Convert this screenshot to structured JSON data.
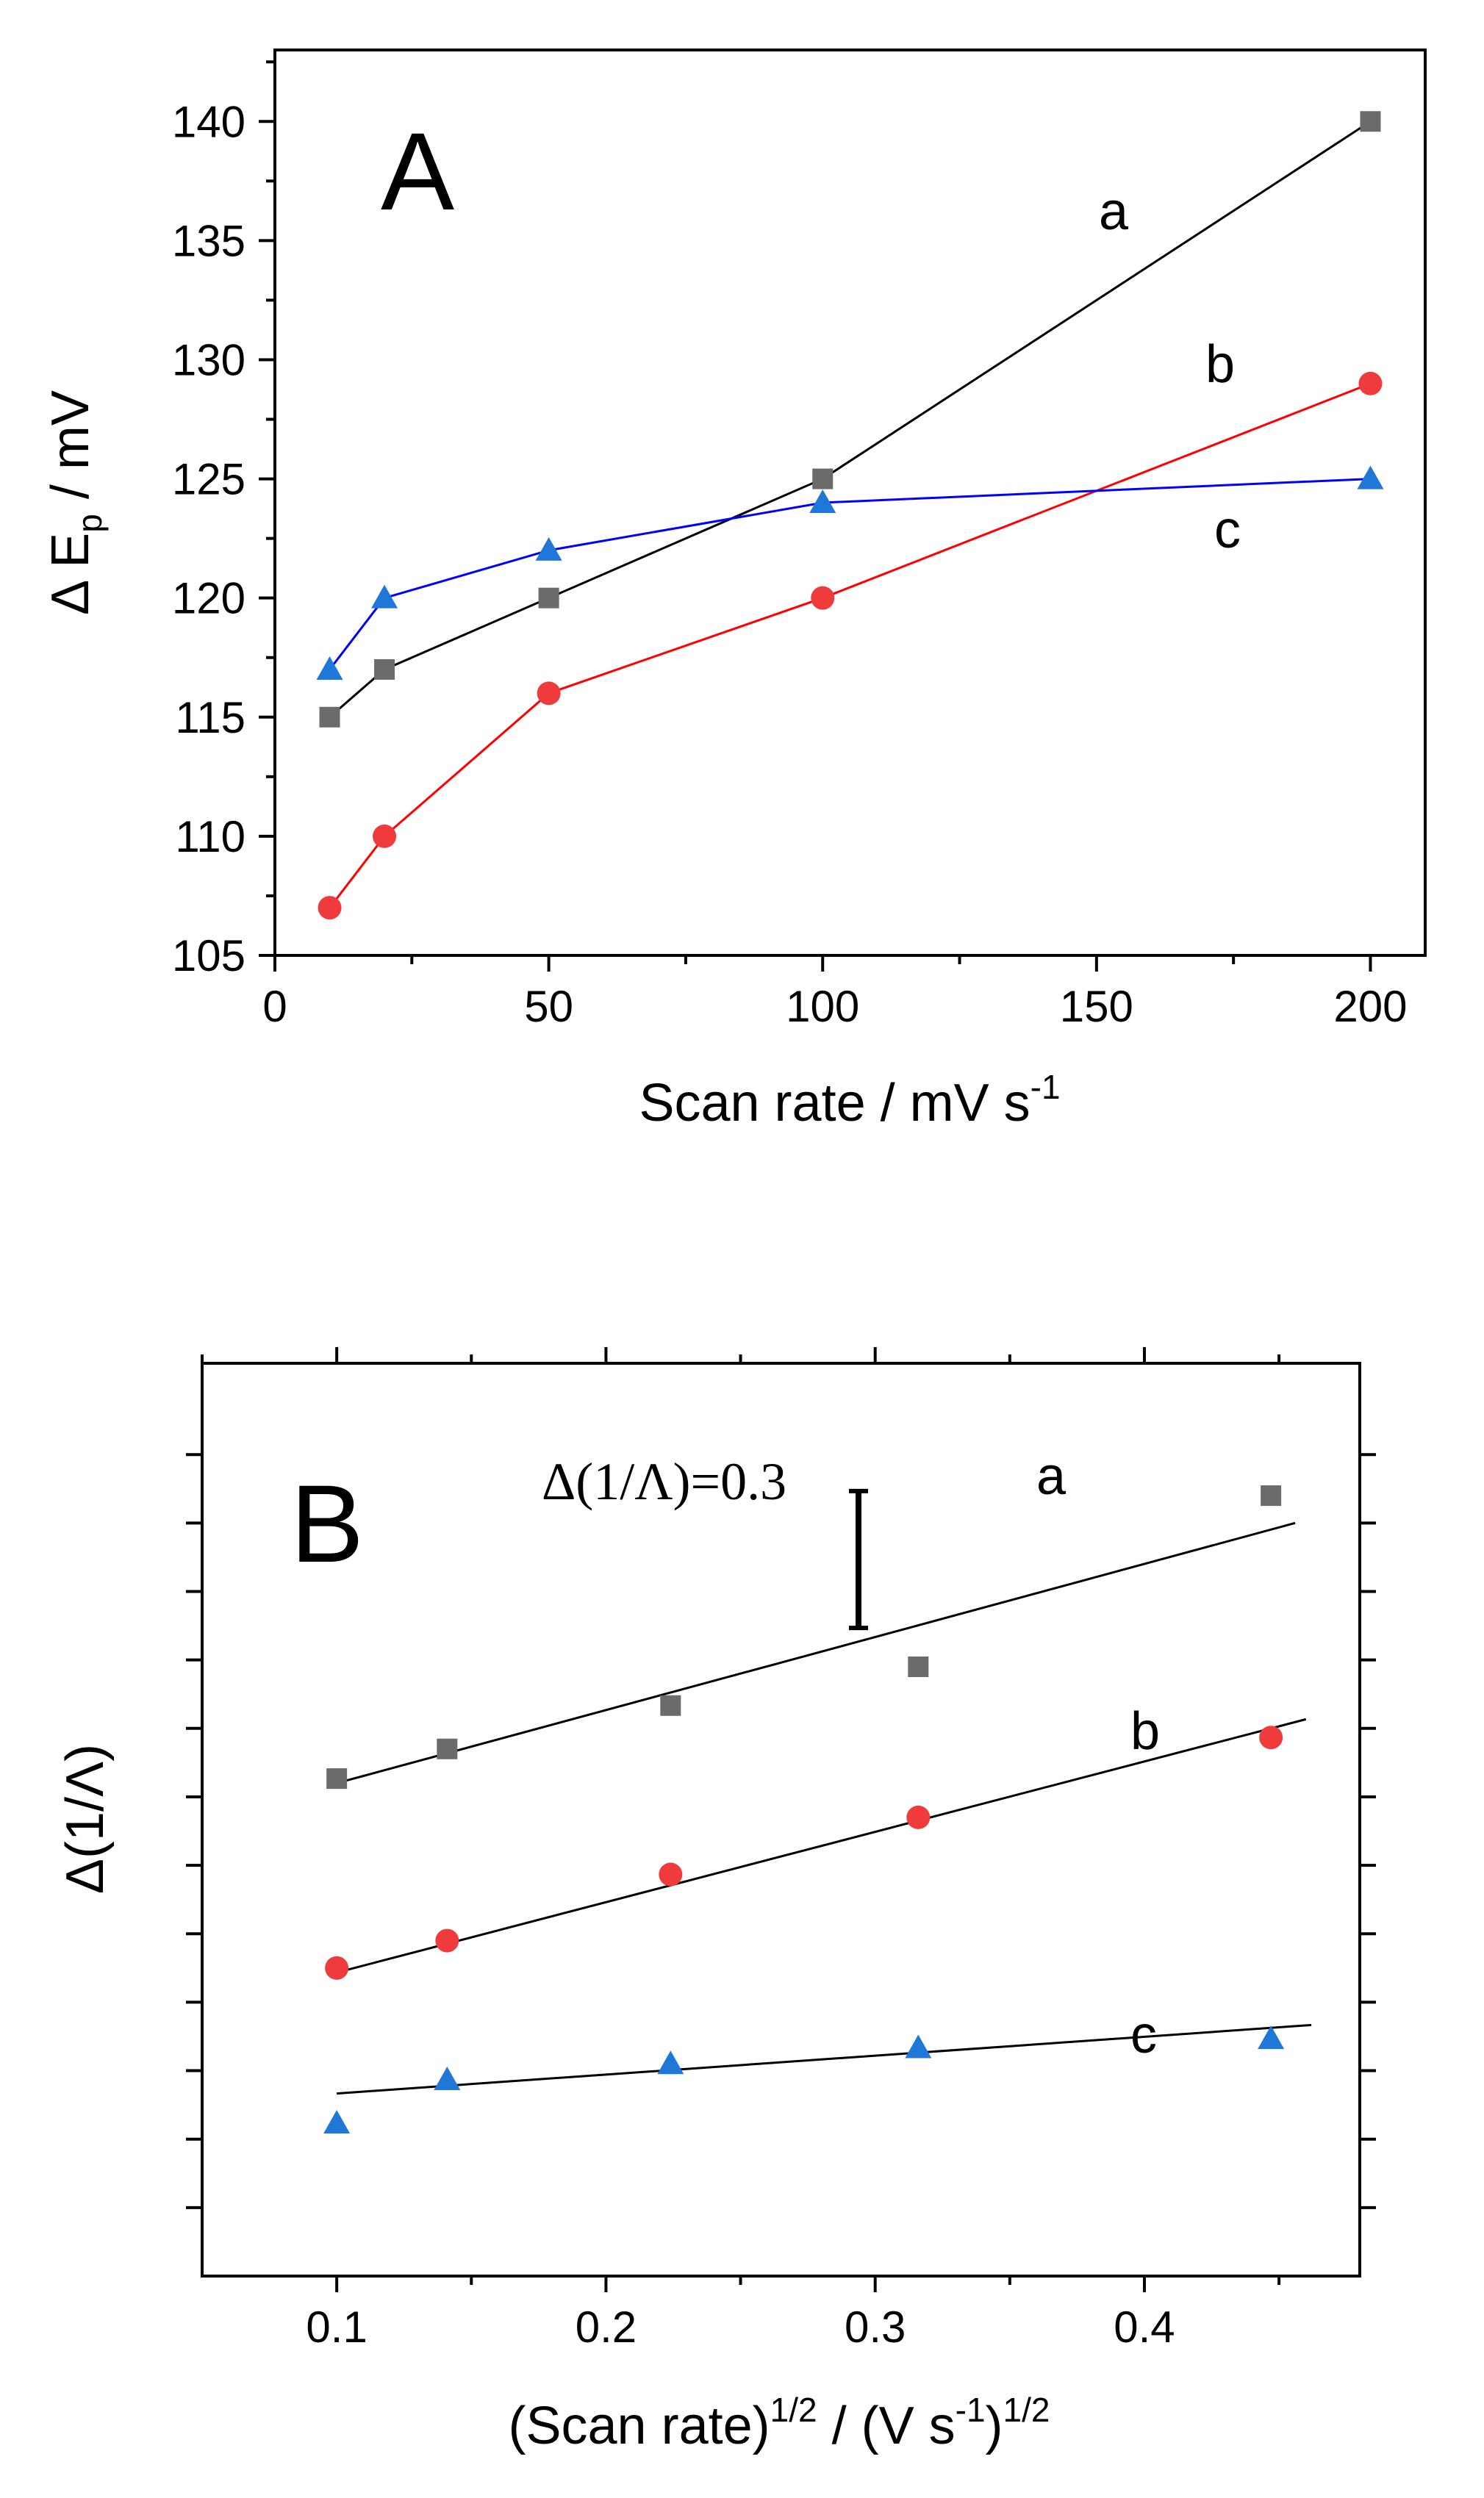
{
  "chart_data": [
    {
      "type": "scatter",
      "panel_label": "A",
      "xlabel": "Scan rate / mV s",
      "xlabel_sup": "-1",
      "ylabel": "Δ E",
      "ylabel_sub": "p",
      "ylabel_unit": " / mV",
      "xlim": [
        0,
        210
      ],
      "ylim": [
        105,
        143
      ],
      "xticks": [
        0,
        50,
        100,
        150,
        200
      ],
      "yticks": [
        105,
        110,
        115,
        120,
        125,
        130,
        135,
        140
      ],
      "x": [
        10,
        20,
        50,
        100,
        200
      ],
      "series": [
        {
          "name": "a",
          "marker": "square",
          "color": "#6b6b6b",
          "line_color": "#000000",
          "values": [
            115,
            117,
            120,
            125,
            140
          ]
        },
        {
          "name": "b",
          "marker": "circle",
          "color": "#ef3b3b",
          "line_color": "#ff0000",
          "values": [
            107,
            110,
            116,
            120,
            129
          ]
        },
        {
          "name": "c",
          "marker": "triangle",
          "color": "#1f78d8",
          "line_color": "#0000ff",
          "values": [
            117,
            120,
            122,
            124,
            125
          ]
        }
      ]
    },
    {
      "type": "scatter",
      "panel_label": "B",
      "xlabel": "(Scan rate)",
      "xlabel_sup": "1/2",
      "xlabel_mid": " / (V s",
      "xlabel_sup2": "-1",
      "xlabel_end": ")",
      "xlabel_sup3": "1/2",
      "ylabel": "Δ(1/Λ)",
      "scale_bar_label": "Δ(1/Λ)=0.3",
      "scale_bar_length": 0.3,
      "xlim": [
        0.05,
        0.48
      ],
      "ylim": [
        0,
        2.0
      ],
      "xticks": [
        0.1,
        0.2,
        0.3,
        0.4
      ],
      "yticks_unlabeled": [
        0.15,
        0.3,
        0.45,
        0.6,
        0.75,
        0.9,
        1.05,
        1.2,
        1.35,
        1.5,
        1.65,
        1.8
      ],
      "x": [
        0.1,
        0.141,
        0.224,
        0.316,
        0.447
      ],
      "series": [
        {
          "name": "a",
          "marker": "square",
          "color": "#6b6b6b",
          "values": [
            1.09,
            1.155,
            1.25,
            1.335,
            1.71
          ],
          "fit": {
            "x": [
              0.1,
              0.456
            ],
            "y": [
              1.08,
              1.65
            ]
          }
        },
        {
          "name": "b",
          "marker": "circle",
          "color": "#ef3b3b",
          "values": [
            0.675,
            0.735,
            0.88,
            1.005,
            1.18
          ],
          "fit": {
            "x": [
              0.1,
              0.46
            ],
            "y": [
              0.665,
              1.22
            ]
          }
        },
        {
          "name": "c",
          "marker": "triangle",
          "color": "#1f78d8",
          "values": [
            0.335,
            0.43,
            0.465,
            0.5,
            0.52
          ],
          "fit": {
            "x": [
              0.1,
              0.462
            ],
            "y": [
              0.4,
              0.55
            ]
          }
        }
      ]
    }
  ]
}
